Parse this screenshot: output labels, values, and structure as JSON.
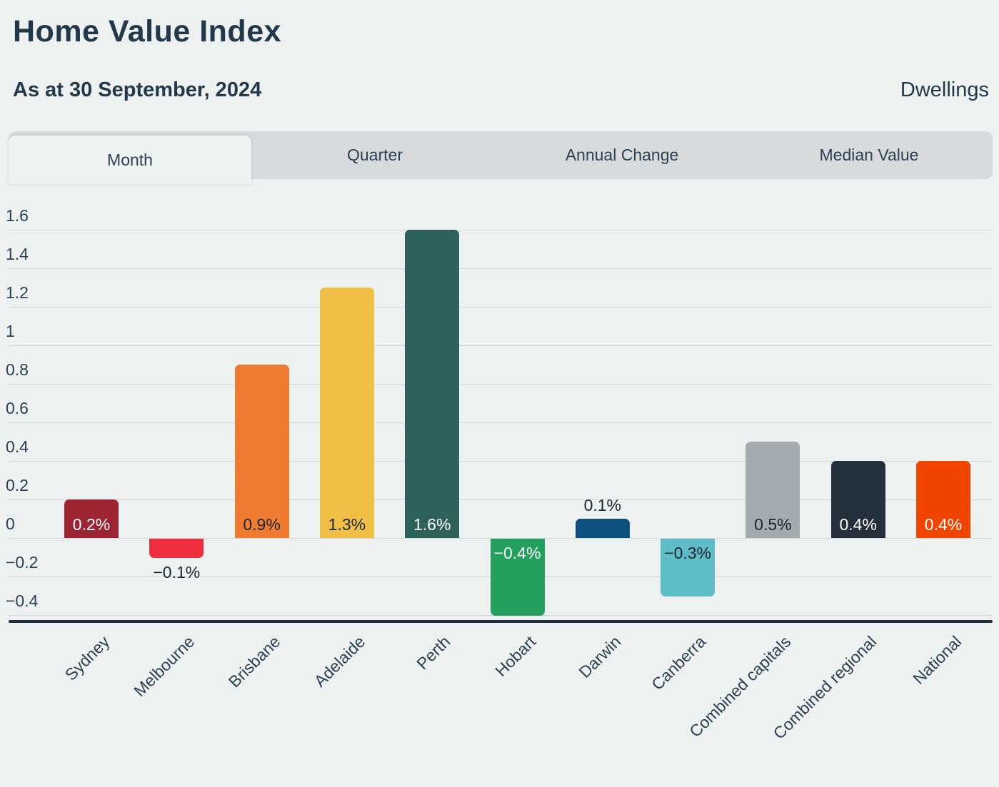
{
  "header": {
    "title": "Home Value Index",
    "subtitle": "As at 30 September, 2024",
    "right_label": "Dwellings"
  },
  "tabs": [
    {
      "label": "Month",
      "active": true
    },
    {
      "label": "Quarter",
      "active": false
    },
    {
      "label": "Annual Change",
      "active": false
    },
    {
      "label": "Median Value",
      "active": false
    }
  ],
  "colors": {
    "page_background": "#edf2f1",
    "tab_strip_background": "#d8dbdb",
    "active_tab_background": "#eef3f2",
    "text_dark": "#22394a",
    "gridline": "#d3d9da",
    "axis_line": "#22313d",
    "bar_label_dark": "#1a252e",
    "bar_label_light": "#ffffff"
  },
  "chart_data": {
    "type": "bar",
    "title": "Home Value Index — Month",
    "xlabel": "",
    "ylabel": "",
    "grid": true,
    "ylim": [
      -0.45,
      1.72
    ],
    "y_ticks": [
      1.6,
      1.4,
      1.2,
      1.0,
      0.8,
      0.6,
      0.4,
      0.2,
      0.0,
      -0.2,
      -0.4
    ],
    "y_tick_labels": [
      "1.6",
      "1.4",
      "1.2",
      "1",
      "0.8",
      "0.6",
      "0.4",
      "0.2",
      "0",
      "−0.2",
      "−0.4"
    ],
    "categories": [
      "Sydney",
      "Melbourne",
      "Brisbane",
      "Adelaide",
      "Perth",
      "Hobart",
      "Darwin",
      "Canberra",
      "Combined capitals",
      "Combined regional",
      "National"
    ],
    "values": [
      0.2,
      -0.1,
      0.9,
      1.3,
      1.6,
      -0.4,
      0.1,
      -0.3,
      0.5,
      0.4,
      0.4
    ],
    "value_labels": [
      "0.2%",
      "−0.1%",
      "0.9%",
      "1.3%",
      "1.6%",
      "−0.4%",
      "0.1%",
      "−0.3%",
      "0.5%",
      "0.4%",
      "0.4%"
    ],
    "bar_colors": [
      "#9d2433",
      "#ee2d3d",
      "#ee7b30",
      "#f0bf45",
      "#2c625a",
      "#23a05e",
      "#0d527e",
      "#5fbdc8",
      "#a6abaf",
      "#232f3b",
      "#f04500"
    ],
    "value_label_positions": [
      "in",
      "out",
      "in",
      "in",
      "in",
      "in",
      "out",
      "in",
      "in",
      "in",
      "in"
    ],
    "value_label_colors": [
      "#ffffff",
      "#1a252e",
      "#1a252e",
      "#1a252e",
      "#ffffff",
      "#ffffff",
      "#1a252e",
      "#1a252e",
      "#1a252e",
      "#ffffff",
      "#ffffff"
    ]
  }
}
